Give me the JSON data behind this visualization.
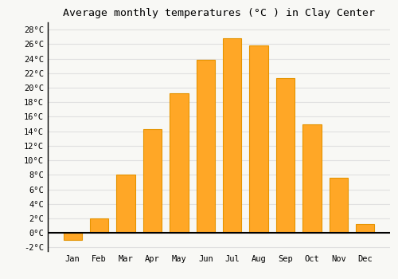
{
  "title": "Average monthly temperatures (°C ) in Clay Center",
  "months": [
    "Jan",
    "Feb",
    "Mar",
    "Apr",
    "May",
    "Jun",
    "Jul",
    "Aug",
    "Sep",
    "Oct",
    "Nov",
    "Dec"
  ],
  "values": [
    -1.0,
    2.0,
    8.0,
    14.3,
    19.2,
    23.8,
    26.8,
    25.8,
    21.3,
    15.0,
    7.6,
    1.2
  ],
  "bar_color": "#FFA726",
  "bar_edge_color": "#E59400",
  "background_color": "#F8F8F5",
  "grid_color": "#E0E0E0",
  "ylim": [
    -2.5,
    29
  ],
  "yticks": [
    -2,
    0,
    2,
    4,
    6,
    8,
    10,
    12,
    14,
    16,
    18,
    20,
    22,
    24,
    26,
    28
  ],
  "ytick_labels": [
    "-2°C",
    "0°C",
    "2°C",
    "4°C",
    "6°C",
    "8°C",
    "10°C",
    "12°C",
    "14°C",
    "16°C",
    "18°C",
    "20°C",
    "22°C",
    "24°C",
    "26°C",
    "28°C"
  ],
  "title_fontsize": 9.5,
  "tick_fontsize": 7.5,
  "font_family": "monospace"
}
